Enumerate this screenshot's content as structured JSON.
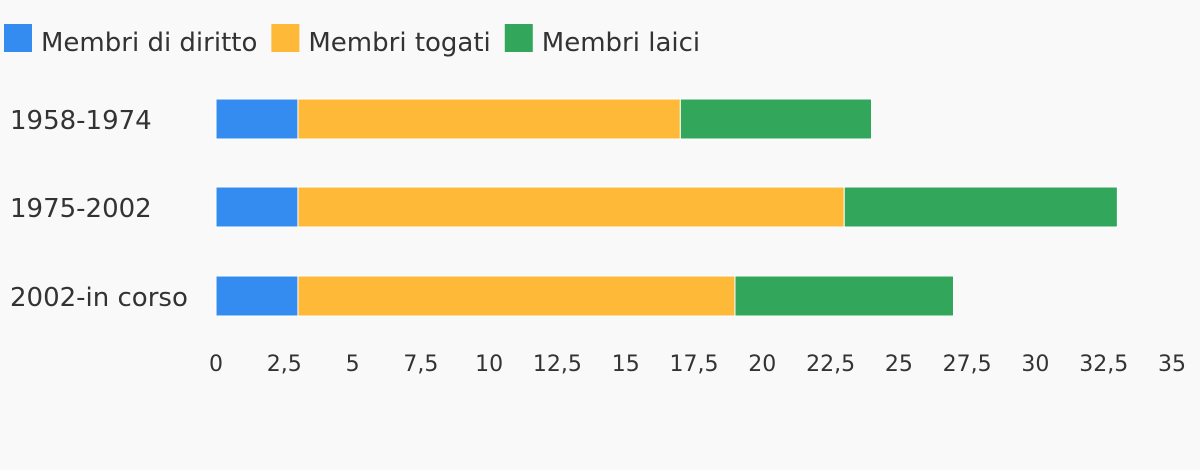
{
  "chart_data": {
    "type": "bar",
    "orientation": "horizontal",
    "stacked": true,
    "categories": [
      "1958-1974",
      "1975-2002",
      "2002-in corso"
    ],
    "series": [
      {
        "name": "Membri di diritto",
        "values": [
          3,
          3,
          3
        ],
        "color": "#348cf0"
      },
      {
        "name": "Membri togati",
        "values": [
          14,
          20,
          16
        ],
        "color": "#ffb938"
      },
      {
        "name": "Membri laici",
        "values": [
          7,
          10,
          8
        ],
        "color": "#32a65a"
      }
    ],
    "xlim": [
      0,
      35
    ],
    "xticks": [
      0,
      2.5,
      5,
      7.5,
      10,
      12.5,
      15,
      17.5,
      20,
      22.5,
      25,
      27.5,
      30,
      32.5,
      35
    ],
    "tick_labels": [
      "0",
      "2,5",
      "5",
      "7,5",
      "10",
      "12,5",
      "15",
      "17,5",
      "20",
      "22,5",
      "25",
      "27,5",
      "30",
      "32,5",
      "35"
    ],
    "legend_position": "top-left",
    "grid": false
  }
}
